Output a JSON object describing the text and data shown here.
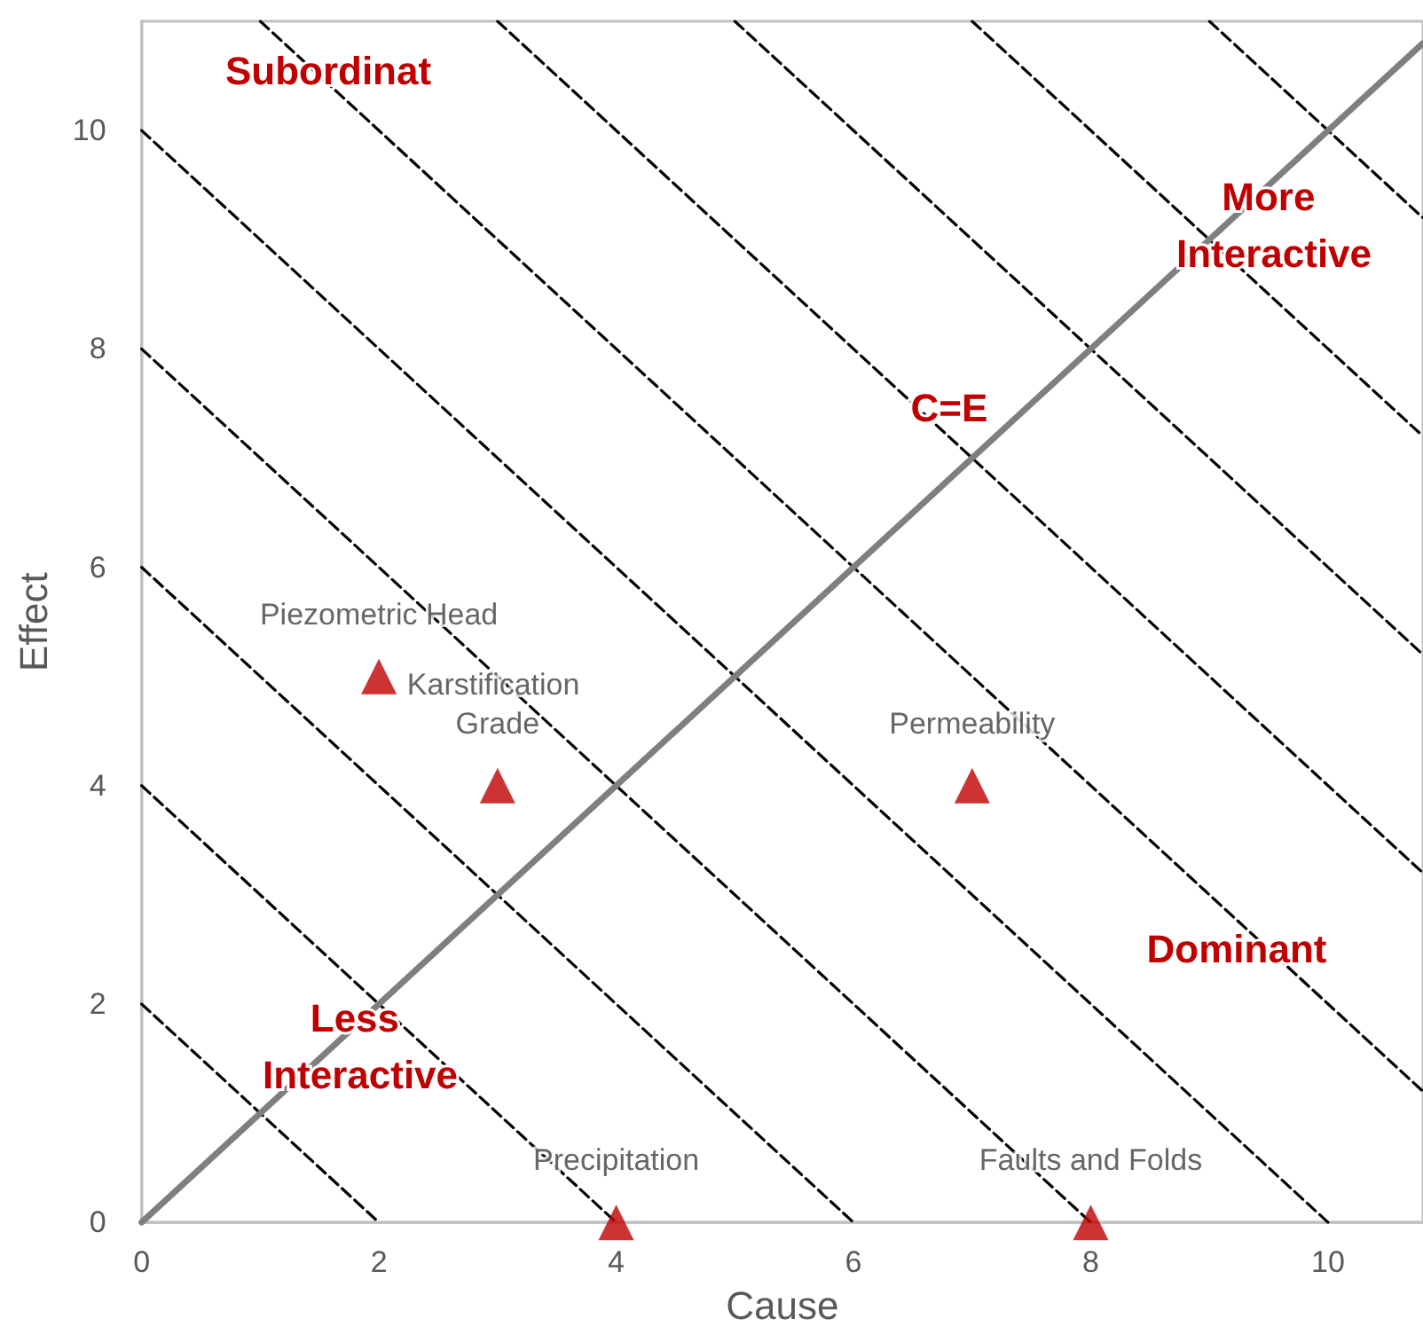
{
  "chart_data": {
    "type": "scatter",
    "xlabel": "Cause",
    "ylabel": "Effect",
    "xlim": [
      0,
      10.8
    ],
    "ylim": [
      0,
      11
    ],
    "xticks": [
      0,
      2,
      4,
      6,
      8,
      10
    ],
    "yticks": [
      0,
      2,
      4,
      6,
      8,
      10
    ],
    "grid": false,
    "series": [
      {
        "type": "line",
        "color": "#000000",
        "line_style": "dashed",
        "marker": "none",
        "x": [
          0,
          2
        ],
        "values": [
          2,
          0
        ]
      },
      {
        "type": "line",
        "color": "#000000",
        "line_style": "dashed",
        "marker": "none",
        "x": [
          0,
          4
        ],
        "values": [
          4,
          0
        ]
      },
      {
        "type": "line",
        "color": "#000000",
        "line_style": "dashed",
        "marker": "none",
        "x": [
          0,
          6
        ],
        "values": [
          6,
          0
        ]
      },
      {
        "type": "line",
        "color": "#000000",
        "line_style": "dashed",
        "marker": "none",
        "x": [
          0,
          8
        ],
        "values": [
          8,
          0
        ]
      },
      {
        "type": "line",
        "color": "#000000",
        "line_style": "dashed",
        "marker": "none",
        "x": [
          0,
          10
        ],
        "values": [
          10,
          0
        ]
      },
      {
        "type": "line",
        "color": "#000000",
        "line_style": "dashed",
        "marker": "none",
        "x": [
          1,
          10.8
        ],
        "values": [
          11,
          1.2
        ]
      },
      {
        "type": "line",
        "color": "#000000",
        "line_style": "dashed",
        "marker": "none",
        "x": [
          3,
          10.8
        ],
        "values": [
          11,
          3.2
        ]
      },
      {
        "type": "line",
        "color": "#000000",
        "line_style": "dashed",
        "marker": "none",
        "x": [
          5,
          10.8
        ],
        "values": [
          11,
          5.2
        ]
      },
      {
        "type": "line",
        "color": "#000000",
        "line_style": "dashed",
        "marker": "none",
        "x": [
          7,
          10.8
        ],
        "values": [
          11,
          7.2
        ]
      },
      {
        "type": "line",
        "color": "#000000",
        "line_style": "dashed",
        "marker": "none",
        "x": [
          9,
          10.8
        ],
        "values": [
          11,
          9.2
        ]
      },
      {
        "type": "line",
        "color": "#7f7f7f",
        "line_style": "solid",
        "marker": "none",
        "x": [
          0,
          10.8
        ],
        "values": [
          0,
          10.8
        ]
      },
      {
        "type": "scatter",
        "color": "#c00000",
        "marker": "triangle",
        "x": [
          2,
          3,
          7,
          4,
          8
        ],
        "values": [
          5,
          4,
          4,
          0,
          0
        ],
        "value_labels": [
          "Piezometric Head",
          "Karstification Grade",
          "Permeability",
          "Precipitation",
          "Faults and Folds"
        ]
      }
    ],
    "annotations": [
      "Subordinat",
      "More Interactive",
      "C=E",
      "Dominant",
      "Less Interactive"
    ]
  }
}
